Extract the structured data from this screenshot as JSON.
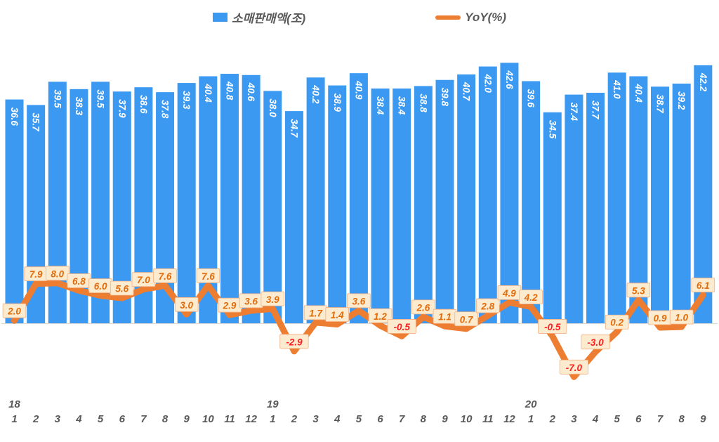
{
  "legend": [
    {
      "label": "소매판매액(조)",
      "swatch": "bar-swatch"
    },
    {
      "label": "YoY(%)",
      "swatch": "line-swatch"
    }
  ],
  "colors": {
    "bar": "#3B99F2",
    "line": "#ED7D31",
    "label_box_fill": "#FDEBD0",
    "label_box_border": "#F4B183",
    "label_text_positive": "#E26B0A",
    "label_text_negative": "#FF1D1D",
    "bar_label_text": "#FFFFFF",
    "axis_text": "#595959",
    "axis_line": "#D9D9D9"
  },
  "chart_data": {
    "type": "bar+line combo",
    "title": "",
    "legend_position": "top",
    "gridlines": false,
    "categories_months": [
      "1",
      "2",
      "3",
      "4",
      "5",
      "6",
      "7",
      "8",
      "9",
      "10",
      "11",
      "12",
      "1",
      "2",
      "3",
      "4",
      "5",
      "6",
      "7",
      "8",
      "9",
      "10",
      "11",
      "12",
      "1",
      "2",
      "3",
      "4",
      "5",
      "6",
      "7",
      "8",
      "9"
    ],
    "year_marks": [
      {
        "index": 0,
        "label": "18"
      },
      {
        "index": 12,
        "label": "19"
      },
      {
        "index": 24,
        "label": "20"
      }
    ],
    "series": [
      {
        "name": "소매판매액(조)",
        "type": "bar",
        "values": [
          36.6,
          35.7,
          39.5,
          38.3,
          39.5,
          37.9,
          38.6,
          37.8,
          39.3,
          40.4,
          40.8,
          40.6,
          38.0,
          34.7,
          40.2,
          38.9,
          40.9,
          38.4,
          38.4,
          38.8,
          39.8,
          40.7,
          42.0,
          42.6,
          39.6,
          34.5,
          37.4,
          37.7,
          41.0,
          40.4,
          38.7,
          39.2,
          42.2
        ]
      },
      {
        "name": "YoY(%)",
        "type": "line",
        "values": [
          2.0,
          7.9,
          8.0,
          6.8,
          6.0,
          5.6,
          7.0,
          7.6,
          3.0,
          7.6,
          2.9,
          3.6,
          3.9,
          -2.9,
          1.7,
          1.4,
          3.6,
          1.2,
          -0.5,
          2.6,
          1.1,
          0.7,
          2.8,
          4.9,
          4.2,
          -0.5,
          -7.0,
          -3.0,
          0.2,
          5.3,
          0.9,
          1.0,
          6.1
        ]
      }
    ],
    "bar_axis_range": [
      0,
      46
    ],
    "line_axis_range": [
      -10,
      10
    ]
  }
}
